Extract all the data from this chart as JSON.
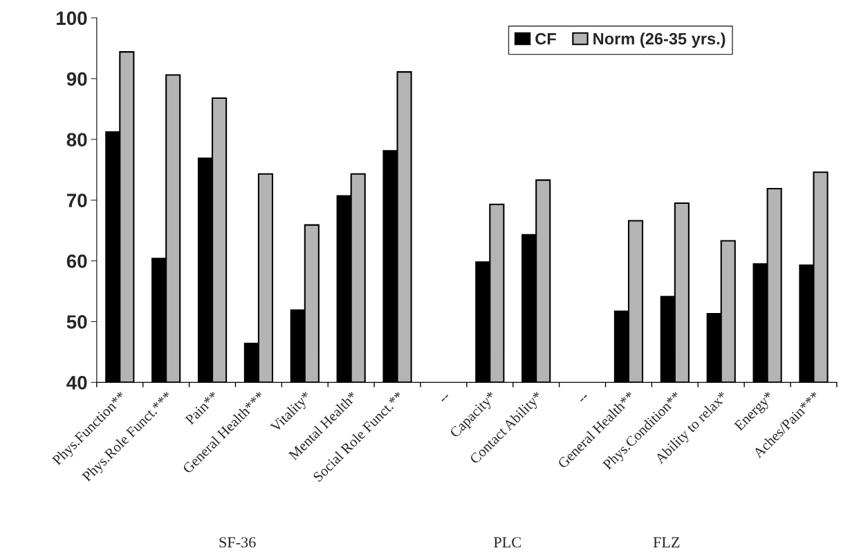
{
  "chart_data": {
    "type": "bar",
    "categories": [
      "Phys.Function**",
      "Phys.Role Funct.***",
      "Pain**",
      "General Health***",
      "Vitality*",
      "Mental Health*",
      "Social Role Funct.**",
      "--",
      "Capacity*",
      "Contact Ability*",
      "--",
      "General Health**",
      "Phys.Condition**",
      "Ability to relax*",
      "Energy*",
      "Aches/Pain***"
    ],
    "series": [
      {
        "name": "CF",
        "color": "#000000",
        "values": [
          81.2,
          60.4,
          76.9,
          46.4,
          51.9,
          70.7,
          78.1,
          null,
          59.8,
          64.3,
          null,
          51.7,
          54.1,
          51.3,
          59.5,
          59.3
        ]
      },
      {
        "name": "Norm (26-35 yrs.)",
        "color": "#b4b4b4",
        "values": [
          94.4,
          90.6,
          86.8,
          74.3,
          65.9,
          74.3,
          91.1,
          null,
          69.3,
          73.3,
          null,
          66.6,
          69.5,
          63.3,
          71.9,
          74.6
        ]
      }
    ],
    "ylim": [
      40,
      100
    ],
    "yticks": [
      40,
      50,
      60,
      70,
      80,
      90,
      100
    ],
    "grid": false,
    "legend": "top right",
    "annotations": [
      "SF-36",
      "PLC",
      "FLZ"
    ]
  }
}
